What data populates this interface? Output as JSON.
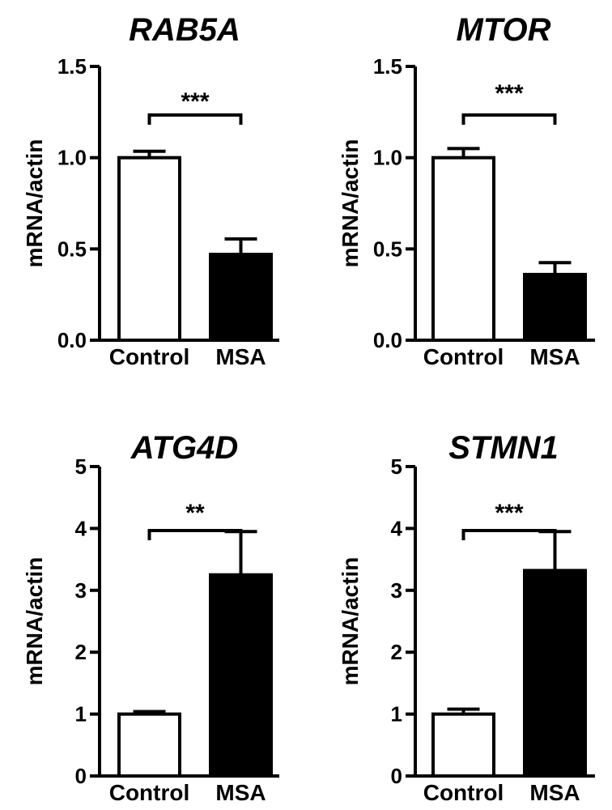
{
  "chart_data": [
    {
      "type": "bar",
      "title": "RAB5A",
      "xlabel": "",
      "ylabel": "mRNA/actin",
      "categories": [
        "Control",
        "MSA"
      ],
      "values": [
        1.0,
        0.47
      ],
      "errors": [
        0.035,
        0.085
      ],
      "bar_fill": [
        "#ffffff",
        "#000000"
      ],
      "ylim": [
        0,
        1.5
      ],
      "yticks": [
        0.0,
        0.5,
        1.0,
        1.5
      ],
      "ytick_labels": [
        "0.0",
        "0.5",
        "1.0",
        "1.5"
      ],
      "significance": "***"
    },
    {
      "type": "bar",
      "title": "MTOR",
      "xlabel": "",
      "ylabel": "mRNA/actin",
      "categories": [
        "Control",
        "MSA"
      ],
      "values": [
        1.0,
        0.36
      ],
      "errors": [
        0.05,
        0.065
      ],
      "bar_fill": [
        "#ffffff",
        "#000000"
      ],
      "ylim": [
        0,
        1.5
      ],
      "yticks": [
        0.0,
        0.5,
        1.0,
        1.5
      ],
      "ytick_labels": [
        "0.0",
        "0.5",
        "1.0",
        "1.5"
      ],
      "significance": "***"
    },
    {
      "type": "bar",
      "title": "ATG4D",
      "xlabel": "",
      "ylabel": "mRNA/actin",
      "categories": [
        "Control",
        "MSA"
      ],
      "values": [
        1.0,
        3.25
      ],
      "errors": [
        0.04,
        0.7
      ],
      "bar_fill": [
        "#ffffff",
        "#000000"
      ],
      "ylim": [
        0,
        5
      ],
      "yticks": [
        0,
        1,
        2,
        3,
        4,
        5
      ],
      "ytick_labels": [
        "0",
        "1",
        "2",
        "3",
        "4",
        "5"
      ],
      "significance": "**"
    },
    {
      "type": "bar",
      "title": "STMN1",
      "xlabel": "",
      "ylabel": "mRNA/actin",
      "categories": [
        "Control",
        "MSA"
      ],
      "values": [
        1.0,
        3.32
      ],
      "errors": [
        0.08,
        0.63
      ],
      "bar_fill": [
        "#ffffff",
        "#000000"
      ],
      "ylim": [
        0,
        5
      ],
      "yticks": [
        0,
        1,
        2,
        3,
        4,
        5
      ],
      "ytick_labels": [
        "0",
        "1",
        "2",
        "3",
        "4",
        "5"
      ],
      "significance": "***"
    }
  ]
}
